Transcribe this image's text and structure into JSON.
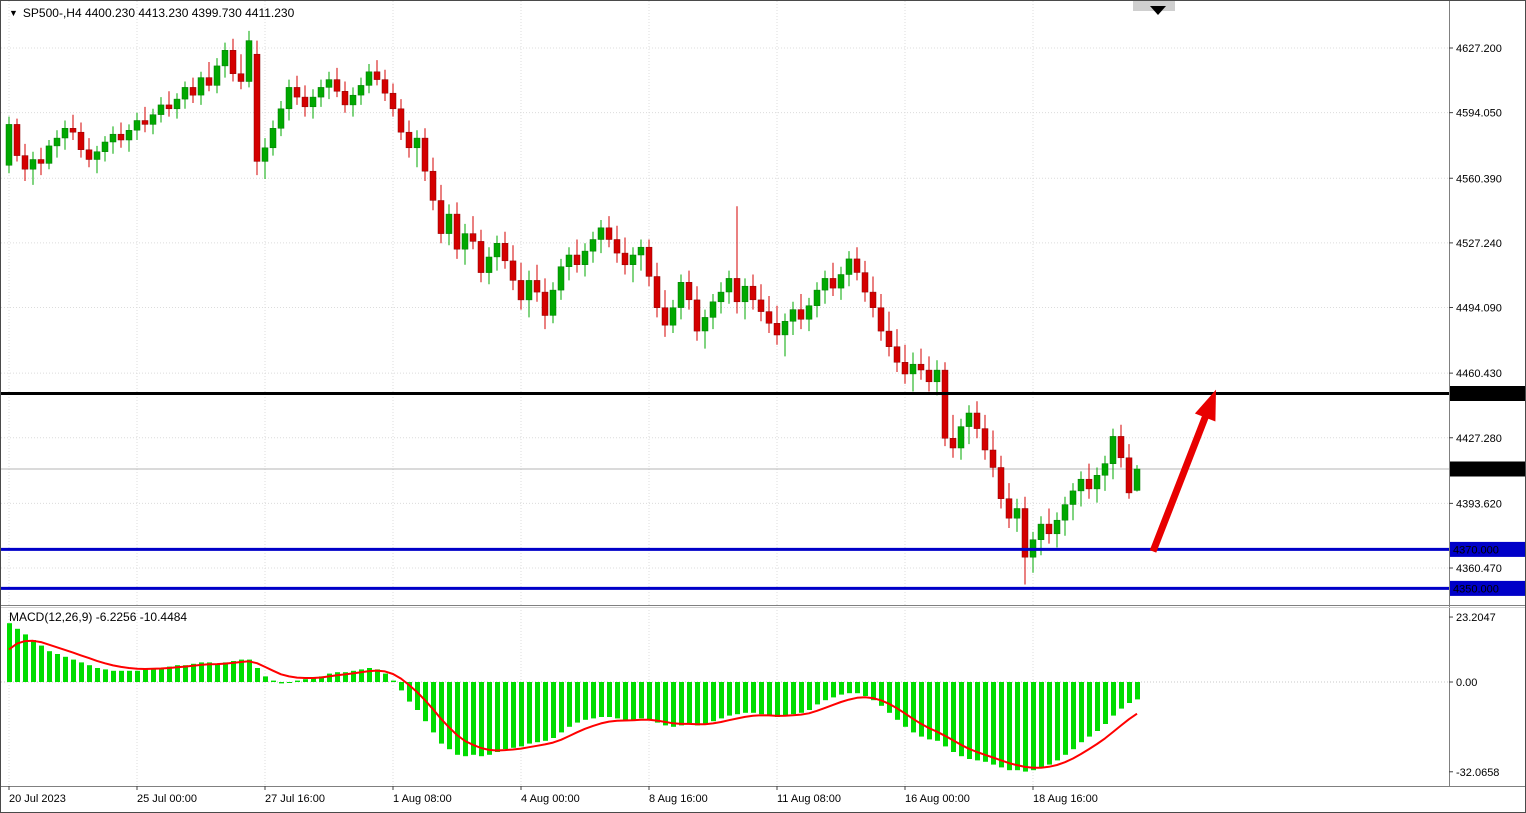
{
  "header": {
    "symbol_info": "SP500-,H4  4400.230 4413.230 4399.730 4411.230"
  },
  "macd_header": {
    "label": "MACD(12,26,9) -6.2256 -10.4484"
  },
  "levels": {
    "lines": [
      {
        "name": "resistance-line",
        "price": 4450.0,
        "label": "4450.000",
        "color": "#000000"
      },
      {
        "name": "support-line-1",
        "price": 4370.0,
        "label": "4370.000",
        "color": "#0000C8"
      },
      {
        "name": "support-line-2",
        "price": 4350.0,
        "label": "4350.000",
        "color": "#0000C8"
      }
    ],
    "current_label": "4411.230"
  },
  "colors": {
    "bull_candle": "#00A800",
    "bear_candle": "#D40000",
    "macd_histogram": "#00DC00",
    "macd_signal": "#FF0000",
    "support_line": "#0000C8",
    "resistance_line": "#000000",
    "arrow": "#E80000",
    "badge_text": "#FFFFFF",
    "grid": "#DCDCDC",
    "separator": "#808080"
  },
  "chart_data": {
    "type": "candlestick",
    "title": "SP500-,H4",
    "symbol": "SP500-",
    "timeframe": "H4",
    "current_price": 4411.23,
    "current_ohlc": {
      "open": 4400.23,
      "high": 4413.23,
      "low": 4399.73,
      "close": 4411.23
    },
    "price_axis": {
      "gridlines": [
        4627.2,
        4594.05,
        4560.39,
        4527.24,
        4494.09,
        4460.43,
        4427.28,
        4393.62,
        4360.47
      ],
      "labels": [
        "4627.200",
        "4594.050",
        "4560.390",
        "4527.240",
        "4494.090",
        "4460.430",
        "4427.280",
        "4393.620",
        "4360.470"
      ],
      "min": 4340,
      "max": 4645
    },
    "time_axis": {
      "ticks": [
        {
          "i": 0,
          "label": "20 Jul 2023"
        },
        {
          "i": 16,
          "label": "25 Jul 00:00"
        },
        {
          "i": 32,
          "label": "27 Jul 16:00"
        },
        {
          "i": 48,
          "label": "1 Aug 08:00"
        },
        {
          "i": 64,
          "label": "4 Aug 00:00"
        },
        {
          "i": 80,
          "label": "8 Aug 16:00"
        },
        {
          "i": 96,
          "label": "11 Aug 08:00"
        },
        {
          "i": 112,
          "label": "16 Aug 00:00"
        },
        {
          "i": 128,
          "label": "18 Aug 16:00"
        }
      ]
    },
    "candles": [
      [
        4567,
        4592,
        4563,
        4588
      ],
      [
        4588,
        4591,
        4569,
        4572
      ],
      [
        4572,
        4578,
        4559,
        4565
      ],
      [
        4565,
        4574,
        4557,
        4570
      ],
      [
        4570,
        4576,
        4562,
        4568
      ],
      [
        4568,
        4580,
        4565,
        4577
      ],
      [
        4577,
        4585,
        4571,
        4581
      ],
      [
        4581,
        4590,
        4575,
        4586
      ],
      [
        4586,
        4593,
        4580,
        4584
      ],
      [
        4584,
        4589,
        4571,
        4575
      ],
      [
        4575,
        4581,
        4566,
        4570
      ],
      [
        4570,
        4577,
        4563,
        4574
      ],
      [
        4574,
        4582,
        4569,
        4579
      ],
      [
        4579,
        4587,
        4573,
        4583
      ],
      [
        4583,
        4589,
        4576,
        4580
      ],
      [
        4580,
        4588,
        4574,
        4585
      ],
      [
        4585,
        4594,
        4580,
        4590
      ],
      [
        4590,
        4597,
        4584,
        4588
      ],
      [
        4588,
        4596,
        4583,
        4593
      ],
      [
        4593,
        4602,
        4589,
        4598
      ],
      [
        4598,
        4605,
        4592,
        4596
      ],
      [
        4596,
        4604,
        4591,
        4601
      ],
      [
        4601,
        4610,
        4596,
        4607
      ],
      [
        4607,
        4612,
        4599,
        4603
      ],
      [
        4603,
        4615,
        4598,
        4612
      ],
      [
        4612,
        4620,
        4605,
        4608
      ],
      [
        4608,
        4622,
        4604,
        4618
      ],
      [
        4618,
        4630,
        4612,
        4626
      ],
      [
        4626,
        4632,
        4610,
        4614
      ],
      [
        4614,
        4624,
        4606,
        4610
      ],
      [
        4610,
        4636,
        4607,
        4631
      ],
      [
        4624,
        4631,
        4562,
        4569
      ],
      [
        4569,
        4581,
        4560,
        4576
      ],
      [
        4576,
        4590,
        4572,
        4586
      ],
      [
        4586,
        4600,
        4582,
        4596
      ],
      [
        4596,
        4611,
        4590,
        4607
      ],
      [
        4607,
        4613,
        4598,
        4602
      ],
      [
        4602,
        4608,
        4592,
        4597
      ],
      [
        4597,
        4606,
        4591,
        4602
      ],
      [
        4602,
        4611,
        4597,
        4607
      ],
      [
        4607,
        4615,
        4601,
        4611
      ],
      [
        4611,
        4617,
        4602,
        4605
      ],
      [
        4605,
        4610,
        4594,
        4598
      ],
      [
        4598,
        4607,
        4592,
        4603
      ],
      [
        4603,
        4612,
        4598,
        4608
      ],
      [
        4608,
        4619,
        4604,
        4615
      ],
      [
        4615,
        4621,
        4608,
        4611
      ],
      [
        4611,
        4616,
        4600,
        4604
      ],
      [
        4604,
        4609,
        4592,
        4596
      ],
      [
        4596,
        4601,
        4580,
        4584
      ],
      [
        4584,
        4590,
        4571,
        4576
      ],
      [
        4576,
        4585,
        4566,
        4581
      ],
      [
        4581,
        4586,
        4559,
        4564
      ],
      [
        4564,
        4571,
        4544,
        4549
      ],
      [
        4549,
        4557,
        4527,
        4532
      ],
      [
        4532,
        4547,
        4526,
        4542
      ],
      [
        4542,
        4548,
        4519,
        4524
      ],
      [
        4524,
        4537,
        4516,
        4532
      ],
      [
        4532,
        4541,
        4524,
        4528
      ],
      [
        4528,
        4534,
        4507,
        4512
      ],
      [
        4512,
        4525,
        4506,
        4520
      ],
      [
        4520,
        4531,
        4513,
        4527
      ],
      [
        4527,
        4533,
        4514,
        4518
      ],
      [
        4518,
        4526,
        4503,
        4508
      ],
      [
        4508,
        4517,
        4493,
        4498
      ],
      [
        4498,
        4513,
        4489,
        4508
      ],
      [
        4508,
        4516,
        4497,
        4502
      ],
      [
        4502,
        4509,
        4483,
        4490
      ],
      [
        4490,
        4507,
        4486,
        4503
      ],
      [
        4503,
        4519,
        4498,
        4515
      ],
      [
        4515,
        4525,
        4508,
        4521
      ],
      [
        4521,
        4529,
        4512,
        4516
      ],
      [
        4516,
        4527,
        4510,
        4523
      ],
      [
        4523,
        4533,
        4517,
        4529
      ],
      [
        4529,
        4539,
        4522,
        4535
      ],
      [
        4535,
        4541,
        4525,
        4529
      ],
      [
        4529,
        4536,
        4517,
        4522
      ],
      [
        4522,
        4530,
        4511,
        4516
      ],
      [
        4516,
        4525,
        4507,
        4521
      ],
      [
        4521,
        4529,
        4513,
        4525
      ],
      [
        4525,
        4529,
        4505,
        4510
      ],
      [
        4510,
        4517,
        4489,
        4494
      ],
      [
        4494,
        4503,
        4479,
        4485
      ],
      [
        4485,
        4498,
        4481,
        4494
      ],
      [
        4494,
        4511,
        4488,
        4507
      ],
      [
        4507,
        4513,
        4493,
        4498
      ],
      [
        4498,
        4505,
        4477,
        4482
      ],
      [
        4482,
        4493,
        4473,
        4489
      ],
      [
        4489,
        4501,
        4483,
        4497
      ],
      [
        4497,
        4507,
        4491,
        4502
      ],
      [
        4502,
        4513,
        4496,
        4509
      ],
      [
        4509,
        4546,
        4491,
        4497
      ],
      [
        4497,
        4509,
        4488,
        4505
      ],
      [
        4505,
        4511,
        4493,
        4498
      ],
      [
        4498,
        4506,
        4487,
        4492
      ],
      [
        4492,
        4500,
        4481,
        4486
      ],
      [
        4486,
        4495,
        4475,
        4480
      ],
      [
        4480,
        4491,
        4469,
        4487
      ],
      [
        4487,
        4497,
        4480,
        4493
      ],
      [
        4493,
        4501,
        4483,
        4488
      ],
      [
        4488,
        4499,
        4482,
        4495
      ],
      [
        4495,
        4507,
        4489,
        4503
      ],
      [
        4503,
        4513,
        4496,
        4509
      ],
      [
        4509,
        4517,
        4500,
        4504
      ],
      [
        4504,
        4515,
        4498,
        4511
      ],
      [
        4511,
        4523,
        4505,
        4519
      ],
      [
        4519,
        4525,
        4508,
        4512
      ],
      [
        4512,
        4518,
        4497,
        4502
      ],
      [
        4502,
        4510,
        4489,
        4494
      ],
      [
        4494,
        4501,
        4477,
        4482
      ],
      [
        4482,
        4492,
        4469,
        4474
      ],
      [
        4474,
        4483,
        4461,
        4466
      ],
      [
        4466,
        4475,
        4455,
        4460
      ],
      [
        4460,
        4471,
        4451,
        4465
      ],
      [
        4465,
        4473,
        4457,
        4462
      ],
      [
        4462,
        4469,
        4451,
        4456
      ],
      [
        4456,
        4467,
        4449,
        4462
      ],
      [
        4462,
        4466,
        4423,
        4427
      ],
      [
        4427,
        4439,
        4417,
        4422
      ],
      [
        4422,
        4437,
        4416,
        4433
      ],
      [
        4433,
        4444,
        4424,
        4440
      ],
      [
        4440,
        4446,
        4427,
        4432
      ],
      [
        4432,
        4439,
        4416,
        4421
      ],
      [
        4421,
        4431,
        4407,
        4412
      ],
      [
        4412,
        4418,
        4391,
        4396
      ],
      [
        4396,
        4404,
        4381,
        4386
      ],
      [
        4386,
        4396,
        4379,
        4391
      ],
      [
        4391,
        4397,
        4352,
        4366
      ],
      [
        4366,
        4379,
        4358,
        4375
      ],
      [
        4375,
        4387,
        4367,
        4383
      ],
      [
        4383,
        4391,
        4373,
        4378
      ],
      [
        4378,
        4389,
        4371,
        4385
      ],
      [
        4385,
        4397,
        4377,
        4393
      ],
      [
        4393,
        4404,
        4385,
        4400
      ],
      [
        4400,
        4410,
        4392,
        4406
      ],
      [
        4406,
        4414,
        4396,
        4401
      ],
      [
        4401,
        4412,
        4394,
        4408
      ],
      [
        4408,
        4418,
        4400,
        4414
      ],
      [
        4414,
        4432,
        4406,
        4428
      ],
      [
        4428,
        4434,
        4412,
        4417
      ],
      [
        4417,
        4424,
        4396,
        4399
      ],
      [
        4400.23,
        4413.23,
        4399.73,
        4411.23
      ]
    ],
    "macd": {
      "params": "12,26,9",
      "current_macd": -6.2256,
      "current_signal": -10.4484,
      "signal_seed": 8,
      "signal_k": 0.28,
      "axis_ticks": [
        {
          "v": 23.2047,
          "label": "23.2047"
        },
        {
          "v": 0,
          "label": "0.00"
        },
        {
          "v": -32.0658,
          "label": "-32.0658"
        }
      ],
      "histogram": [
        21,
        19,
        17,
        15,
        13,
        11,
        10,
        9,
        8,
        7,
        6,
        5,
        4.5,
        4,
        4,
        4,
        4,
        4.5,
        5,
        5,
        5.5,
        6,
        6,
        6.5,
        7,
        7,
        6.5,
        7,
        7.5,
        8,
        8,
        5,
        2,
        0.5,
        -0.5,
        0,
        0.5,
        1,
        1.5,
        2,
        3,
        3.5,
        3.5,
        4,
        4.5,
        5,
        4.5,
        3,
        0.5,
        -3,
        -7,
        -10,
        -14,
        -18,
        -22,
        -24,
        -26,
        -26.5,
        -26,
        -26.5,
        -26,
        -25,
        -24,
        -23.5,
        -23,
        -22,
        -21.5,
        -21,
        -20,
        -18,
        -16,
        -14.5,
        -13.5,
        -13,
        -12.5,
        -12.5,
        -13,
        -13.5,
        -13.5,
        -13,
        -13.5,
        -14.5,
        -15.5,
        -16,
        -15.5,
        -15,
        -15.5,
        -15,
        -14,
        -13,
        -12,
        -11.5,
        -11,
        -11,
        -11.5,
        -12,
        -12.5,
        -12,
        -11.5,
        -11,
        -10,
        -8,
        -6.5,
        -5.5,
        -4.5,
        -4,
        -4,
        -5,
        -6.5,
        -8.5,
        -11,
        -13.5,
        -16,
        -18,
        -19.5,
        -20.5,
        -21,
        -23,
        -25,
        -26.5,
        -27.5,
        -28,
        -28.5,
        -29.5,
        -30.5,
        -31.5,
        -31.5,
        -32,
        -31.5,
        -30.5,
        -29.5,
        -28,
        -26,
        -24,
        -21.5,
        -19.5,
        -17.5,
        -15,
        -12,
        -9.5,
        -7.5,
        -6.2256
      ]
    },
    "annotations": {
      "arrow": {
        "from_price": 4369,
        "to_price": 4452,
        "color": "#E80000"
      }
    }
  }
}
